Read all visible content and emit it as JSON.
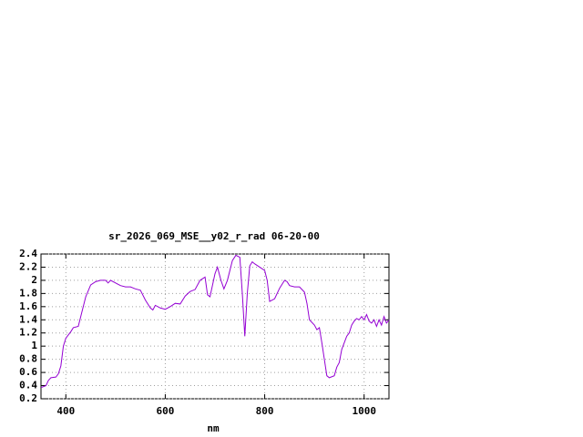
{
  "chart_data": {
    "type": "line",
    "title": "sr_2026_069_MSE__y02_r_rad 06-20-00",
    "x_label": "nm",
    "x": [
      350,
      360,
      365,
      370,
      380,
      385,
      390,
      395,
      400,
      410,
      415,
      425,
      430,
      440,
      450,
      460,
      470,
      480,
      485,
      490,
      500,
      510,
      520,
      530,
      540,
      550,
      560,
      570,
      575,
      580,
      590,
      600,
      610,
      620,
      630,
      640,
      650,
      660,
      670,
      680,
      685,
      690,
      700,
      705,
      712,
      718,
      725,
      735,
      742,
      750,
      755,
      760,
      765,
      770,
      775,
      780,
      790,
      800,
      805,
      810,
      820,
      830,
      840,
      845,
      850,
      860,
      870,
      880,
      885,
      890,
      900,
      905,
      910,
      915,
      920,
      925,
      930,
      940,
      945,
      950,
      955,
      960,
      965,
      970,
      975,
      980,
      985,
      990,
      995,
      1000,
      1005,
      1010,
      1015,
      1020,
      1025,
      1030,
      1035,
      1040,
      1045,
      1050
    ],
    "values": [
      0.37,
      0.4,
      0.48,
      0.52,
      0.53,
      0.58,
      0.7,
      1.0,
      1.12,
      1.22,
      1.28,
      1.3,
      1.45,
      1.75,
      1.93,
      1.98,
      2.0,
      2.0,
      1.96,
      2.0,
      1.96,
      1.92,
      1.9,
      1.9,
      1.87,
      1.85,
      1.7,
      1.58,
      1.55,
      1.62,
      1.58,
      1.56,
      1.6,
      1.65,
      1.64,
      1.76,
      1.83,
      1.86,
      2.0,
      2.05,
      1.78,
      1.75,
      2.1,
      2.2,
      2.0,
      1.87,
      2.0,
      2.3,
      2.38,
      2.35,
      1.8,
      1.15,
      1.8,
      2.22,
      2.28,
      2.25,
      2.2,
      2.15,
      2.0,
      1.68,
      1.72,
      1.88,
      2.0,
      1.98,
      1.92,
      1.9,
      1.9,
      1.82,
      1.65,
      1.4,
      1.32,
      1.25,
      1.28,
      1.05,
      0.8,
      0.55,
      0.52,
      0.55,
      0.68,
      0.75,
      0.95,
      1.05,
      1.15,
      1.2,
      1.32,
      1.38,
      1.42,
      1.4,
      1.45,
      1.4,
      1.48,
      1.38,
      1.35,
      1.4,
      1.3,
      1.4,
      1.32,
      1.45,
      1.35,
      1.4
    ],
    "color": "#9400d3",
    "xlim": [
      350,
      1050
    ],
    "xticks": [
      400,
      600,
      800,
      1000
    ],
    "ylim": [
      0.2,
      2.4
    ],
    "yticks": [
      0.2,
      0.4,
      0.6,
      0.8,
      1,
      1.2,
      1.4,
      1.6,
      1.8,
      2,
      2.2,
      2.4
    ],
    "grid": true
  }
}
